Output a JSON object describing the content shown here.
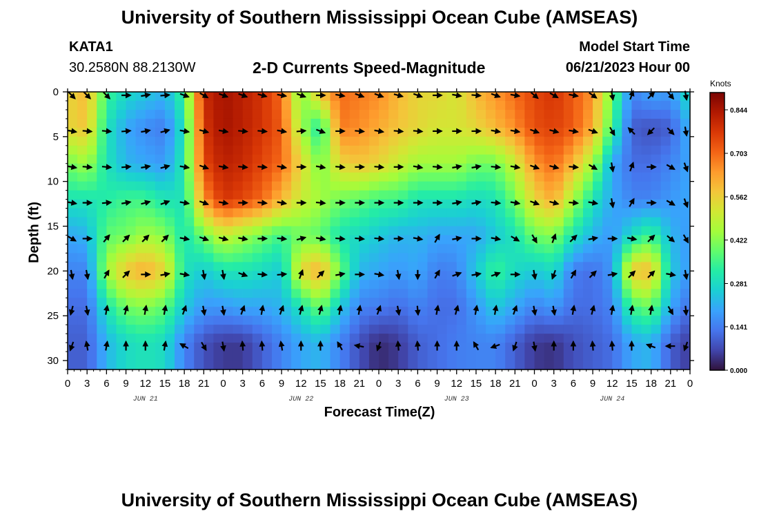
{
  "header": {
    "title": "University of Southern Mississippi Ocean Cube (AMSEAS)",
    "station": "KATA1",
    "coords": "30.2580N  88.2130W",
    "subtitle": "2-D Currents Speed-Magnitude",
    "model_start_label": "Model Start Time",
    "model_start_value": "06/21/2023 Hour 00",
    "footer_title": "University of Southern Mississippi Ocean Cube (AMSEAS)"
  },
  "chart_data": {
    "type": "heatmap",
    "title": "2-D Currents Speed-Magnitude",
    "xlabel": "Forecast Time(Z)",
    "ylabel": "Depth (ft)",
    "x_tick_labels": [
      "0",
      "3",
      "6",
      "9",
      "12",
      "15",
      "18",
      "21",
      "0",
      "3",
      "6",
      "9",
      "12",
      "15",
      "18",
      "21",
      "0",
      "3",
      "6",
      "9",
      "12",
      "15",
      "18",
      "21",
      "0",
      "3",
      "6",
      "9",
      "12",
      "15",
      "18",
      "21",
      "0"
    ],
    "x_range_hours": [
      0,
      96
    ],
    "date_labels": [
      {
        "label": "JUN 21",
        "hour": 12
      },
      {
        "label": "JUN 22",
        "hour": 36
      },
      {
        "label": "JUN 23",
        "hour": 60
      },
      {
        "label": "JUN 24",
        "hour": 84
      }
    ],
    "y_ticks": [
      0,
      5,
      10,
      15,
      20,
      25,
      30
    ],
    "y_range_ft": [
      0,
      31
    ],
    "colorbar": {
      "unit": "Knots",
      "ticks": [
        "0.844",
        "0.703",
        "0.562",
        "0.422",
        "0.281",
        "0.141",
        "0.000"
      ],
      "range": [
        0,
        0.9
      ],
      "colors": [
        "#30123b",
        "#4145ab",
        "#4675ed",
        "#39a2fc",
        "#1bcfd4",
        "#24eca6",
        "#61fc6c",
        "#a4fc3b",
        "#d1e834",
        "#f3c63a",
        "#fe9b2d",
        "#f36315",
        "#d93806",
        "#b11901",
        "#7a0403"
      ]
    },
    "depth_levels_ft": [
      0,
      4,
      8,
      12,
      16,
      20,
      24,
      28
    ],
    "speed_knots_hourly_note": "sampled every 3 h (33 columns, hours 0..96) at each depth level",
    "speed_knots": [
      [
        0.55,
        0.6,
        0.35,
        0.28,
        0.25,
        0.22,
        0.35,
        0.8,
        0.85,
        0.82,
        0.78,
        0.7,
        0.4,
        0.6,
        0.7,
        0.68,
        0.66,
        0.6,
        0.55,
        0.55,
        0.52,
        0.6,
        0.65,
        0.7,
        0.75,
        0.78,
        0.72,
        0.65,
        0.4,
        0.15,
        0.2,
        0.18,
        0.3
      ],
      [
        0.55,
        0.58,
        0.3,
        0.2,
        0.16,
        0.14,
        0.3,
        0.78,
        0.85,
        0.82,
        0.78,
        0.72,
        0.45,
        0.3,
        0.68,
        0.66,
        0.62,
        0.58,
        0.55,
        0.52,
        0.52,
        0.55,
        0.6,
        0.66,
        0.74,
        0.76,
        0.72,
        0.62,
        0.35,
        0.1,
        0.08,
        0.1,
        0.22
      ],
      [
        0.4,
        0.45,
        0.3,
        0.22,
        0.2,
        0.18,
        0.32,
        0.75,
        0.82,
        0.8,
        0.75,
        0.7,
        0.55,
        0.4,
        0.55,
        0.58,
        0.55,
        0.5,
        0.45,
        0.45,
        0.45,
        0.4,
        0.4,
        0.5,
        0.65,
        0.7,
        0.6,
        0.45,
        0.2,
        0.12,
        0.12,
        0.15,
        0.2
      ],
      [
        0.3,
        0.3,
        0.32,
        0.35,
        0.35,
        0.3,
        0.3,
        0.65,
        0.78,
        0.75,
        0.7,
        0.6,
        0.5,
        0.45,
        0.4,
        0.38,
        0.35,
        0.35,
        0.3,
        0.3,
        0.3,
        0.28,
        0.3,
        0.4,
        0.55,
        0.62,
        0.45,
        0.3,
        0.2,
        0.15,
        0.15,
        0.18,
        0.2
      ],
      [
        0.2,
        0.22,
        0.38,
        0.4,
        0.45,
        0.42,
        0.3,
        0.4,
        0.5,
        0.45,
        0.4,
        0.35,
        0.4,
        0.38,
        0.3,
        0.28,
        0.25,
        0.22,
        0.22,
        0.2,
        0.2,
        0.2,
        0.25,
        0.3,
        0.4,
        0.42,
        0.3,
        0.22,
        0.18,
        0.28,
        0.35,
        0.22,
        0.18
      ],
      [
        0.15,
        0.15,
        0.45,
        0.58,
        0.62,
        0.55,
        0.3,
        0.25,
        0.3,
        0.3,
        0.28,
        0.25,
        0.55,
        0.62,
        0.4,
        0.22,
        0.2,
        0.18,
        0.2,
        0.14,
        0.15,
        0.25,
        0.35,
        0.28,
        0.25,
        0.28,
        0.14,
        0.12,
        0.18,
        0.58,
        0.6,
        0.25,
        0.18
      ],
      [
        0.12,
        0.12,
        0.3,
        0.4,
        0.42,
        0.38,
        0.25,
        0.18,
        0.18,
        0.2,
        0.2,
        0.22,
        0.3,
        0.4,
        0.25,
        0.15,
        0.14,
        0.12,
        0.15,
        0.12,
        0.12,
        0.18,
        0.25,
        0.2,
        0.15,
        0.18,
        0.12,
        0.12,
        0.15,
        0.35,
        0.4,
        0.2,
        0.12
      ],
      [
        0.1,
        0.1,
        0.22,
        0.28,
        0.3,
        0.28,
        0.15,
        0.08,
        0.05,
        0.05,
        0.1,
        0.15,
        0.2,
        0.22,
        0.15,
        0.08,
        0.03,
        0.05,
        0.1,
        0.12,
        0.14,
        0.15,
        0.15,
        0.1,
        0.05,
        0.04,
        0.08,
        0.1,
        0.12,
        0.2,
        0.22,
        0.1,
        0.05
      ]
    ],
    "arrow_directions_deg_note": "direction the current flows toward, degrees clockwise from north, sampled every 3 h at each depth level",
    "arrow_directions_deg": [
      [
        135,
        135,
        135,
        90,
        80,
        85,
        110,
        120,
        110,
        110,
        105,
        100,
        110,
        90,
        100,
        110,
        110,
        105,
        110,
        90,
        100,
        95,
        110,
        100,
        130,
        120,
        100,
        125,
        170,
        20,
        45,
        140,
        170
      ],
      [
        100,
        95,
        95,
        85,
        80,
        75,
        100,
        105,
        100,
        95,
        95,
        100,
        85,
        110,
        90,
        95,
        100,
        95,
        95,
        90,
        90,
        90,
        100,
        100,
        110,
        105,
        100,
        110,
        150,
        315,
        225,
        135,
        170
      ],
      [
        100,
        95,
        95,
        85,
        80,
        75,
        100,
        110,
        100,
        95,
        95,
        100,
        90,
        100,
        95,
        90,
        95,
        90,
        100,
        95,
        80,
        80,
        95,
        100,
        110,
        105,
        95,
        120,
        170,
        20,
        90,
        120,
        160
      ],
      [
        100,
        90,
        85,
        80,
        75,
        70,
        100,
        110,
        100,
        90,
        95,
        100,
        90,
        95,
        90,
        90,
        90,
        90,
        90,
        90,
        80,
        80,
        95,
        100,
        110,
        105,
        95,
        100,
        170,
        30,
        90,
        120,
        160
      ],
      [
        120,
        90,
        40,
        45,
        45,
        45,
        100,
        110,
        105,
        100,
        90,
        95,
        75,
        100,
        95,
        95,
        95,
        90,
        100,
        30,
        80,
        90,
        100,
        120,
        150,
        20,
        45,
        80,
        90,
        100,
        45,
        130,
        150
      ],
      [
        170,
        170,
        30,
        45,
        90,
        80,
        100,
        170,
        170,
        110,
        95,
        85,
        20,
        45,
        80,
        90,
        100,
        170,
        180,
        30,
        70,
        80,
        70,
        90,
        170,
        200,
        30,
        45,
        80,
        45,
        45,
        100,
        170
      ],
      [
        195,
        170,
        10,
        15,
        10,
        10,
        20,
        170,
        170,
        20,
        10,
        20,
        15,
        15,
        10,
        10,
        20,
        170,
        175,
        10,
        15,
        10,
        10,
        20,
        170,
        170,
        10,
        15,
        10,
        10,
        10,
        150,
        175
      ],
      [
        200,
        350,
        10,
        0,
        0,
        10,
        300,
        150,
        170,
        355,
        355,
        350,
        0,
        0,
        330,
        280,
        200,
        355,
        355,
        0,
        0,
        330,
        250,
        200,
        170,
        0,
        0,
        355,
        355,
        0,
        290,
        270,
        200
      ]
    ]
  }
}
